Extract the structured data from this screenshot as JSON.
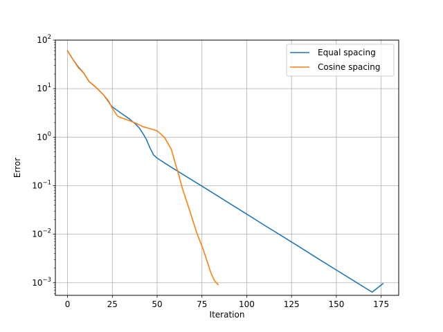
{
  "chart_data": {
    "type": "line",
    "title": "",
    "xlabel": "Iteration",
    "ylabel": "Error",
    "xlim": [
      -6.8,
      184.8
    ],
    "ylim": [
      0.00055,
      100
    ],
    "yscale": "log",
    "grid": true,
    "legend_position": "top-right",
    "x_ticks": [
      0,
      25,
      50,
      75,
      100,
      125,
      150,
      175
    ],
    "y_ticks": [
      0.001,
      0.01,
      0.1,
      1,
      10,
      100
    ],
    "series": [
      {
        "name": "Equal spacing",
        "color": "#1f77b4",
        "x": [
          0,
          3,
          6,
          9,
          12,
          16,
          20,
          23,
          24,
          25,
          28,
          30,
          33,
          35,
          38,
          40,
          42,
          44,
          46,
          48,
          50,
          55,
          60,
          70,
          80,
          90,
          100,
          110,
          120,
          130,
          140,
          150,
          160,
          170,
          176
        ],
        "y": [
          60,
          40,
          28,
          21,
          14,
          10.5,
          7.5,
          5.3,
          4.6,
          4.2,
          3.5,
          3.1,
          2.6,
          2.3,
          1.85,
          1.55,
          1.2,
          0.9,
          0.6,
          0.43,
          0.37,
          0.28,
          0.215,
          0.127,
          0.075,
          0.044,
          0.026,
          0.0152,
          0.009,
          0.0053,
          0.0031,
          0.00183,
          0.00108,
          0.00064,
          0.00096
        ]
      },
      {
        "name": "Cosine spacing",
        "color": "#ff7f0e",
        "x": [
          0,
          3,
          6,
          9,
          12,
          16,
          20,
          23,
          25,
          28,
          30,
          33,
          38,
          42,
          46,
          50,
          54,
          56,
          58,
          60,
          62,
          64,
          68,
          72,
          76,
          80,
          82,
          84
        ],
        "y": [
          60,
          40,
          27,
          21,
          14,
          10.5,
          7.5,
          5.5,
          3.9,
          2.7,
          2.5,
          2.3,
          1.95,
          1.65,
          1.5,
          1.35,
          1.0,
          0.75,
          0.55,
          0.3,
          0.17,
          0.09,
          0.032,
          0.011,
          0.0045,
          0.0016,
          0.0011,
          0.00092
        ]
      }
    ]
  }
}
